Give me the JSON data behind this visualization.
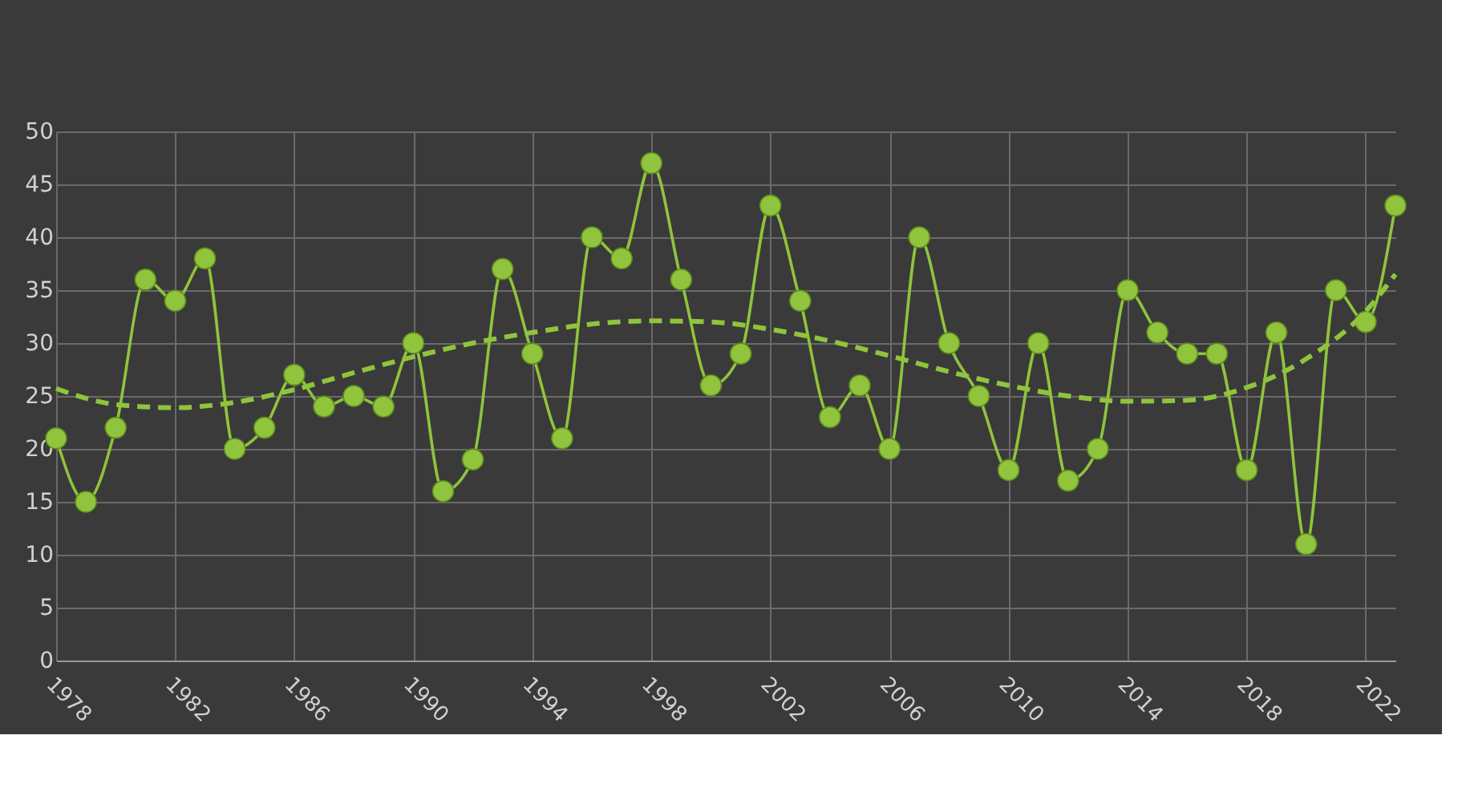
{
  "chart_data": {
    "type": "line",
    "x": [
      1978,
      1979,
      1980,
      1981,
      1982,
      1983,
      1984,
      1985,
      1986,
      1987,
      1988,
      1989,
      1990,
      1991,
      1992,
      1993,
      1994,
      1995,
      1996,
      1997,
      1998,
      1999,
      2000,
      2001,
      2002,
      2003,
      2004,
      2005,
      2006,
      2007,
      2008,
      2009,
      2010,
      2011,
      2012,
      2013,
      2014,
      2015,
      2016,
      2017,
      2018,
      2019,
      2020,
      2021,
      2022,
      2023
    ],
    "series": [
      {
        "color": "#8fc43c",
        "marker": "circle",
        "line_style": "solid",
        "values": [
          21,
          15,
          22,
          36,
          34,
          38,
          20,
          22,
          27,
          24,
          25,
          24,
          30,
          16,
          19,
          37,
          29,
          21,
          40,
          38,
          47,
          36,
          26,
          29,
          43,
          34,
          23,
          26,
          20,
          40,
          30,
          25,
          18,
          30,
          17,
          20,
          35,
          31,
          29,
          29,
          18,
          31,
          11,
          35,
          32,
          43
        ]
      },
      {
        "color": "#8fc43c",
        "marker": "none",
        "line_style": "dashed",
        "x": [
          1978,
          1980,
          1982,
          1984,
          1986,
          1988,
          1990,
          1992,
          1994,
          1996,
          1998,
          2000,
          2002,
          2004,
          2006,
          2008,
          2010,
          2012,
          2014,
          2016,
          2018,
          2020,
          2022,
          2023
        ],
        "values": [
          25.7,
          24.2,
          23.9,
          24.4,
          25.6,
          27.2,
          28.7,
          30.0,
          31.0,
          31.8,
          32.1,
          32.0,
          31.3,
          30.2,
          28.8,
          27.3,
          26.0,
          25.0,
          24.5,
          24.6,
          25.8,
          28.5,
          33.0,
          36.5
        ]
      }
    ],
    "xlim": [
      1978,
      2023
    ],
    "xticks": [
      1978,
      1982,
      1986,
      1990,
      1994,
      1998,
      2002,
      2006,
      2010,
      2014,
      2018,
      2022
    ],
    "ylim": [
      0,
      50
    ],
    "yticks": [
      0,
      5,
      10,
      15,
      20,
      25,
      30,
      35,
      40,
      45,
      50
    ],
    "grid": true
  }
}
